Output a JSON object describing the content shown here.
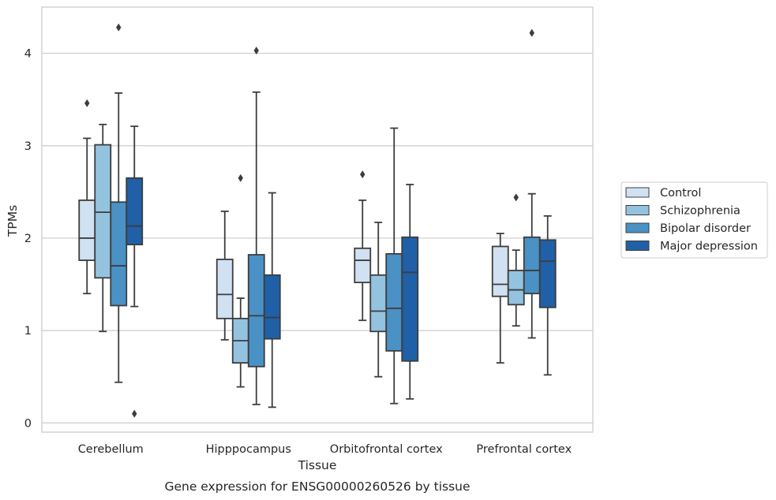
{
  "chart_data": {
    "type": "box",
    "title": "",
    "caption": "Gene expression for ENSG00000260526 by tissue",
    "xlabel": "Tissue",
    "ylabel": "TPMs",
    "ylim": [
      -0.1,
      4.5
    ],
    "yticks": [
      "0",
      "1",
      "2",
      "3",
      "4"
    ],
    "grid": "horizontal",
    "legend_position": "right",
    "categories": [
      "Cerebellum",
      "Hipppocampus",
      "Orbitofrontal cortex",
      "Prefrontal cortex"
    ],
    "series": [
      {
        "name": "Control",
        "color": "#d0e1f1",
        "boxes": [
          {
            "min": 1.4,
            "q1": 1.76,
            "median": 2.0,
            "q3": 2.41,
            "max": 3.08,
            "outliers": [
              3.46
            ]
          },
          {
            "min": 0.9,
            "q1": 1.13,
            "median": 1.39,
            "q3": 1.77,
            "max": 2.29,
            "outliers": []
          },
          {
            "min": 1.11,
            "q1": 1.52,
            "median": 1.76,
            "q3": 1.89,
            "max": 2.41,
            "outliers": [
              2.69
            ]
          },
          {
            "min": 0.65,
            "q1": 1.37,
            "median": 1.5,
            "q3": 1.91,
            "max": 2.05,
            "outliers": []
          }
        ]
      },
      {
        "name": "Schizophrenia",
        "color": "#93c3df",
        "boxes": [
          {
            "min": 0.99,
            "q1": 1.57,
            "median": 2.28,
            "q3": 3.01,
            "max": 3.23,
            "outliers": []
          },
          {
            "min": 0.39,
            "q1": 0.65,
            "median": 0.89,
            "q3": 1.13,
            "max": 1.35,
            "outliers": [
              2.65
            ]
          },
          {
            "min": 0.5,
            "q1": 0.99,
            "median": 1.21,
            "q3": 1.6,
            "max": 2.17,
            "outliers": []
          },
          {
            "min": 1.05,
            "q1": 1.28,
            "median": 1.44,
            "q3": 1.65,
            "max": 1.87,
            "outliers": [
              2.44
            ]
          }
        ]
      },
      {
        "name": "Bipolar disorder",
        "color": "#4a91c5",
        "boxes": [
          {
            "min": 0.44,
            "q1": 1.27,
            "median": 1.7,
            "q3": 2.39,
            "max": 3.57,
            "outliers": [
              4.28
            ]
          },
          {
            "min": 0.2,
            "q1": 0.61,
            "median": 1.16,
            "q3": 1.82,
            "max": 3.58,
            "outliers": [
              4.03
            ]
          },
          {
            "min": 0.21,
            "q1": 0.78,
            "median": 1.24,
            "q3": 1.83,
            "max": 3.19,
            "outliers": []
          },
          {
            "min": 0.92,
            "q1": 1.4,
            "median": 1.65,
            "q3": 2.01,
            "max": 2.48,
            "outliers": [
              4.22
            ]
          }
        ]
      },
      {
        "name": "Major depression",
        "color": "#2060a7",
        "boxes": [
          {
            "min": 1.26,
            "q1": 1.93,
            "median": 2.13,
            "q3": 2.65,
            "max": 3.21,
            "outliers": [
              0.1
            ]
          },
          {
            "min": 0.17,
            "q1": 0.91,
            "median": 1.14,
            "q3": 1.6,
            "max": 2.49,
            "outliers": []
          },
          {
            "min": 0.26,
            "q1": 0.67,
            "median": 1.63,
            "q3": 2.01,
            "max": 2.58,
            "outliers": []
          },
          {
            "min": 0.52,
            "q1": 1.25,
            "median": 1.75,
            "q3": 1.98,
            "max": 2.24,
            "outliers": []
          }
        ]
      }
    ]
  },
  "colors": {
    "grid": "#cccccc",
    "frame": "#cccccc",
    "line": "#3d3d3d",
    "text": "#262626"
  }
}
